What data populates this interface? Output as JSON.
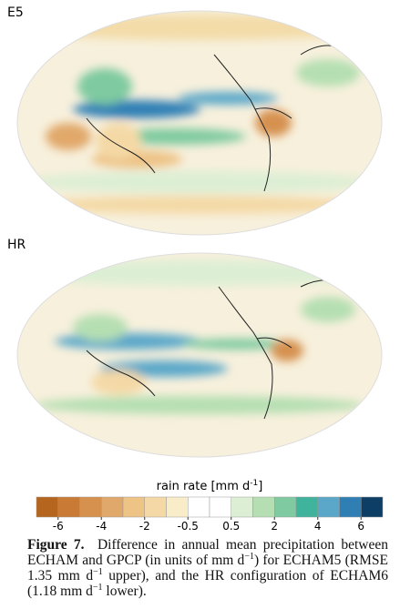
{
  "panels": [
    {
      "label": "E5"
    },
    {
      "label": "HR"
    }
  ],
  "colorbar": {
    "title": "rain rate [mm d",
    "title_sup": "-1",
    "title_end": "]",
    "colors": [
      "#b5651d",
      "#c97a35",
      "#d6914f",
      "#e1a86b",
      "#edc386",
      "#f4d9a6",
      "#f9ecc9",
      "#ffffff",
      "#ffffff",
      "#dcefd4",
      "#b5dfb2",
      "#7fcaa0",
      "#3fb39b",
      "#5aa7c9",
      "#2f7fb5",
      "#0d3f66"
    ],
    "ticks": [
      -6,
      -4,
      -2,
      -0.5,
      0.5,
      2,
      4,
      6
    ]
  },
  "caption": {
    "label": "Figure 7.",
    "parts": [
      "Difference in annual mean precipitation between ECHAM and GPCP (in units of mm d",
      "−1",
      ") for ECHAM5 (RMSE 1.35 mm d",
      "−1",
      " upper), and the HR configuration of ECHAM6 (1.18 mm d",
      "−1",
      " lower)."
    ]
  }
}
